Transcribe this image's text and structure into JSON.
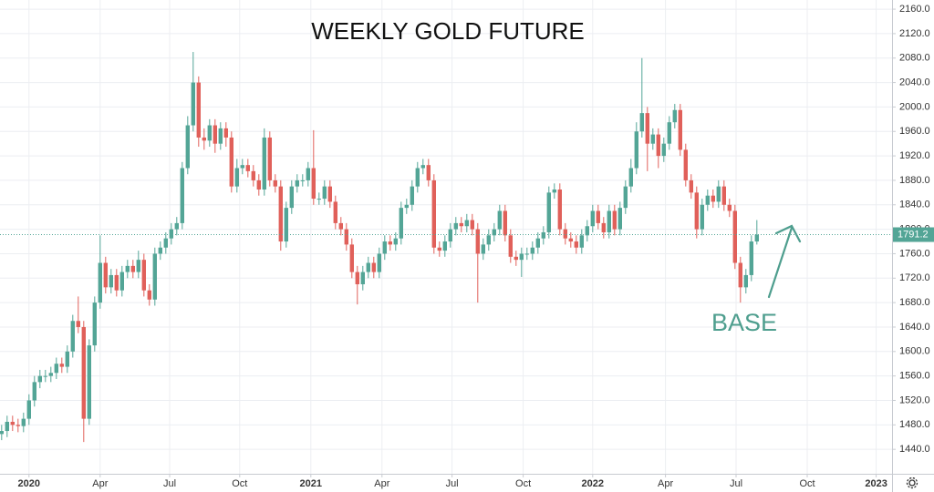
{
  "chart_data": {
    "type": "candlestick",
    "title": "WEEKLY GOLD FUTURE",
    "annotation": "BASE",
    "up_color": "#53a596",
    "down_color": "#e0605a",
    "grid": true,
    "xlim": [
      -0.3,
      162.7
    ],
    "ylim": [
      1400,
      2175
    ],
    "xticks": [
      {
        "value": 5,
        "label": "2020"
      },
      {
        "value": 18,
        "label": "Apr"
      },
      {
        "value": 30.7,
        "label": "Jul"
      },
      {
        "value": 43.5,
        "label": "Oct"
      },
      {
        "value": 56.5,
        "label": "2021"
      },
      {
        "value": 69.5,
        "label": "Apr"
      },
      {
        "value": 82.3,
        "label": "Jul"
      },
      {
        "value": 95.3,
        "label": "Oct"
      },
      {
        "value": 108,
        "label": "2022"
      },
      {
        "value": 121.3,
        "label": "Apr"
      },
      {
        "value": 134.2,
        "label": "Jul"
      },
      {
        "value": 147.2,
        "label": "Oct"
      },
      {
        "value": 159.8,
        "label": "2023"
      }
    ],
    "yticks": [
      {
        "value": 1440,
        "label": "1440.0"
      },
      {
        "value": 1480,
        "label": "1480.0"
      },
      {
        "value": 1520,
        "label": "1520.0"
      },
      {
        "value": 1560,
        "label": "1560.0"
      },
      {
        "value": 1600,
        "label": "1600.0"
      },
      {
        "value": 1640,
        "label": "1640.0"
      },
      {
        "value": 1680,
        "label": "1680.0"
      },
      {
        "value": 1720,
        "label": "1720.0"
      },
      {
        "value": 1760,
        "label": "1760.0"
      },
      {
        "value": 1800,
        "label": "1800.0"
      },
      {
        "value": 1840,
        "label": "1840.0"
      },
      {
        "value": 1880,
        "label": "1880.0"
      },
      {
        "value": 1920,
        "label": "1920.0"
      },
      {
        "value": 1960,
        "label": "1960.0"
      },
      {
        "value": 2000,
        "label": "2000.0"
      },
      {
        "value": 2040,
        "label": "2040.0"
      },
      {
        "value": 2080,
        "label": "2080.0"
      },
      {
        "value": 2120,
        "label": "2120.0"
      },
      {
        "value": 2160,
        "label": "2160.0"
      }
    ],
    "open": [
      1465,
      1470,
      1485,
      1480,
      1478,
      1490,
      1520,
      1550,
      1560,
      1560,
      1565,
      1580,
      1575,
      1600,
      1650,
      1640,
      1490,
      1610,
      1680,
      1745,
      1705,
      1725,
      1700,
      1730,
      1740,
      1730,
      1750,
      1700,
      1685,
      1760,
      1770,
      1785,
      1800,
      1810,
      1900,
      1970,
      2040,
      1950,
      1945,
      1970,
      1940,
      1965,
      1950,
      1870,
      1900,
      1905,
      1895,
      1880,
      1865,
      1950,
      1880,
      1870,
      1780,
      1835,
      1870,
      1880,
      1880,
      1900,
      1850,
      1850,
      1870,
      1845,
      1810,
      1800,
      1775,
      1730,
      1710,
      1730,
      1745,
      1730,
      1760,
      1780,
      1775,
      1785,
      1835,
      1840,
      1870,
      1900,
      1905,
      1880,
      1770,
      1765,
      1780,
      1800,
      1810,
      1805,
      1815,
      1800,
      1760,
      1775,
      1790,
      1800,
      1830,
      1790,
      1755,
      1750,
      1760,
      1760,
      1770,
      1785,
      1795,
      1860,
      1865,
      1800,
      1785,
      1780,
      1770,
      1790,
      1805,
      1830,
      1810,
      1795,
      1830,
      1800,
      1835,
      1870,
      1900,
      1960,
      1990,
      1940,
      1955,
      1920,
      1940,
      1975,
      1995,
      1930,
      1880,
      1860,
      1800,
      1840,
      1855,
      1845,
      1870,
      1840,
      1830,
      1745,
      1705,
      1725,
      1780
    ],
    "high": [
      1480,
      1495,
      1495,
      1490,
      1500,
      1530,
      1560,
      1570,
      1570,
      1575,
      1590,
      1590,
      1610,
      1660,
      1690,
      1650,
      1620,
      1690,
      1790,
      1755,
      1735,
      1735,
      1740,
      1750,
      1750,
      1765,
      1760,
      1710,
      1770,
      1780,
      1795,
      1810,
      1820,
      1910,
      1985,
      2090,
      2050,
      1965,
      1980,
      1980,
      1975,
      1975,
      1960,
      1915,
      1915,
      1915,
      1905,
      1890,
      1965,
      1960,
      1890,
      1880,
      1845,
      1880,
      1890,
      1890,
      1910,
      1962,
      1860,
      1880,
      1880,
      1855,
      1820,
      1810,
      1785,
      1740,
      1740,
      1755,
      1755,
      1770,
      1790,
      1790,
      1795,
      1845,
      1850,
      1880,
      1910,
      1915,
      1915,
      1890,
      1780,
      1790,
      1810,
      1820,
      1820,
      1825,
      1825,
      1810,
      1785,
      1800,
      1810,
      1840,
      1840,
      1800,
      1765,
      1770,
      1770,
      1780,
      1795,
      1805,
      1870,
      1875,
      1875,
      1810,
      1795,
      1790,
      1800,
      1815,
      1840,
      1840,
      1820,
      1840,
      1840,
      1845,
      1880,
      1915,
      1975,
      2080,
      2000,
      1965,
      1965,
      1950,
      1985,
      2005,
      2005,
      1940,
      1890,
      1870,
      1850,
      1865,
      1865,
      1880,
      1880,
      1850,
      1840,
      1755,
      1735,
      1790,
      1815
    ],
    "low": [
      1455,
      1460,
      1470,
      1468,
      1468,
      1480,
      1510,
      1540,
      1550,
      1550,
      1555,
      1565,
      1565,
      1590,
      1630,
      1452,
      1480,
      1600,
      1670,
      1695,
      1695,
      1690,
      1690,
      1720,
      1720,
      1720,
      1690,
      1675,
      1675,
      1750,
      1760,
      1775,
      1790,
      1800,
      1890,
      1960,
      1935,
      1930,
      1935,
      1925,
      1930,
      1935,
      1860,
      1860,
      1890,
      1885,
      1870,
      1855,
      1855,
      1870,
      1860,
      1765,
      1770,
      1825,
      1860,
      1870,
      1870,
      1840,
      1840,
      1840,
      1835,
      1800,
      1790,
      1765,
      1720,
      1677,
      1700,
      1720,
      1720,
      1720,
      1750,
      1765,
      1765,
      1775,
      1825,
      1830,
      1860,
      1890,
      1870,
      1760,
      1755,
      1755,
      1770,
      1790,
      1795,
      1795,
      1790,
      1680,
      1750,
      1765,
      1780,
      1790,
      1780,
      1745,
      1740,
      1722,
      1750,
      1750,
      1760,
      1775,
      1785,
      1850,
      1790,
      1775,
      1770,
      1760,
      1760,
      1780,
      1795,
      1800,
      1785,
      1785,
      1790,
      1790,
      1825,
      1860,
      1890,
      1950,
      1895,
      1930,
      1900,
      1910,
      1930,
      1965,
      1920,
      1870,
      1850,
      1785,
      1790,
      1830,
      1835,
      1835,
      1830,
      1820,
      1735,
      1680,
      1695,
      1715,
      1775
    ],
    "close": [
      1470,
      1485,
      1480,
      1478,
      1490,
      1520,
      1550,
      1560,
      1560,
      1565,
      1580,
      1575,
      1600,
      1650,
      1640,
      1490,
      1610,
      1680,
      1745,
      1705,
      1725,
      1700,
      1730,
      1740,
      1730,
      1750,
      1700,
      1685,
      1760,
      1770,
      1785,
      1800,
      1810,
      1900,
      1970,
      2040,
      1950,
      1945,
      1970,
      1940,
      1965,
      1950,
      1870,
      1900,
      1905,
      1895,
      1880,
      1865,
      1950,
      1880,
      1870,
      1780,
      1835,
      1870,
      1880,
      1880,
      1900,
      1850,
      1850,
      1870,
      1845,
      1810,
      1800,
      1775,
      1730,
      1710,
      1730,
      1745,
      1730,
      1760,
      1780,
      1775,
      1785,
      1835,
      1840,
      1870,
      1900,
      1905,
      1880,
      1770,
      1765,
      1780,
      1800,
      1810,
      1805,
      1815,
      1800,
      1760,
      1775,
      1790,
      1800,
      1830,
      1790,
      1755,
      1750,
      1760,
      1760,
      1770,
      1785,
      1795,
      1860,
      1865,
      1800,
      1785,
      1780,
      1770,
      1790,
      1805,
      1830,
      1810,
      1795,
      1830,
      1800,
      1835,
      1870,
      1900,
      1960,
      1990,
      1940,
      1955,
      1920,
      1940,
      1975,
      1995,
      1930,
      1880,
      1860,
      1800,
      1840,
      1855,
      1845,
      1870,
      1840,
      1830,
      1745,
      1705,
      1725,
      1780,
      1791.2
    ]
  }
}
